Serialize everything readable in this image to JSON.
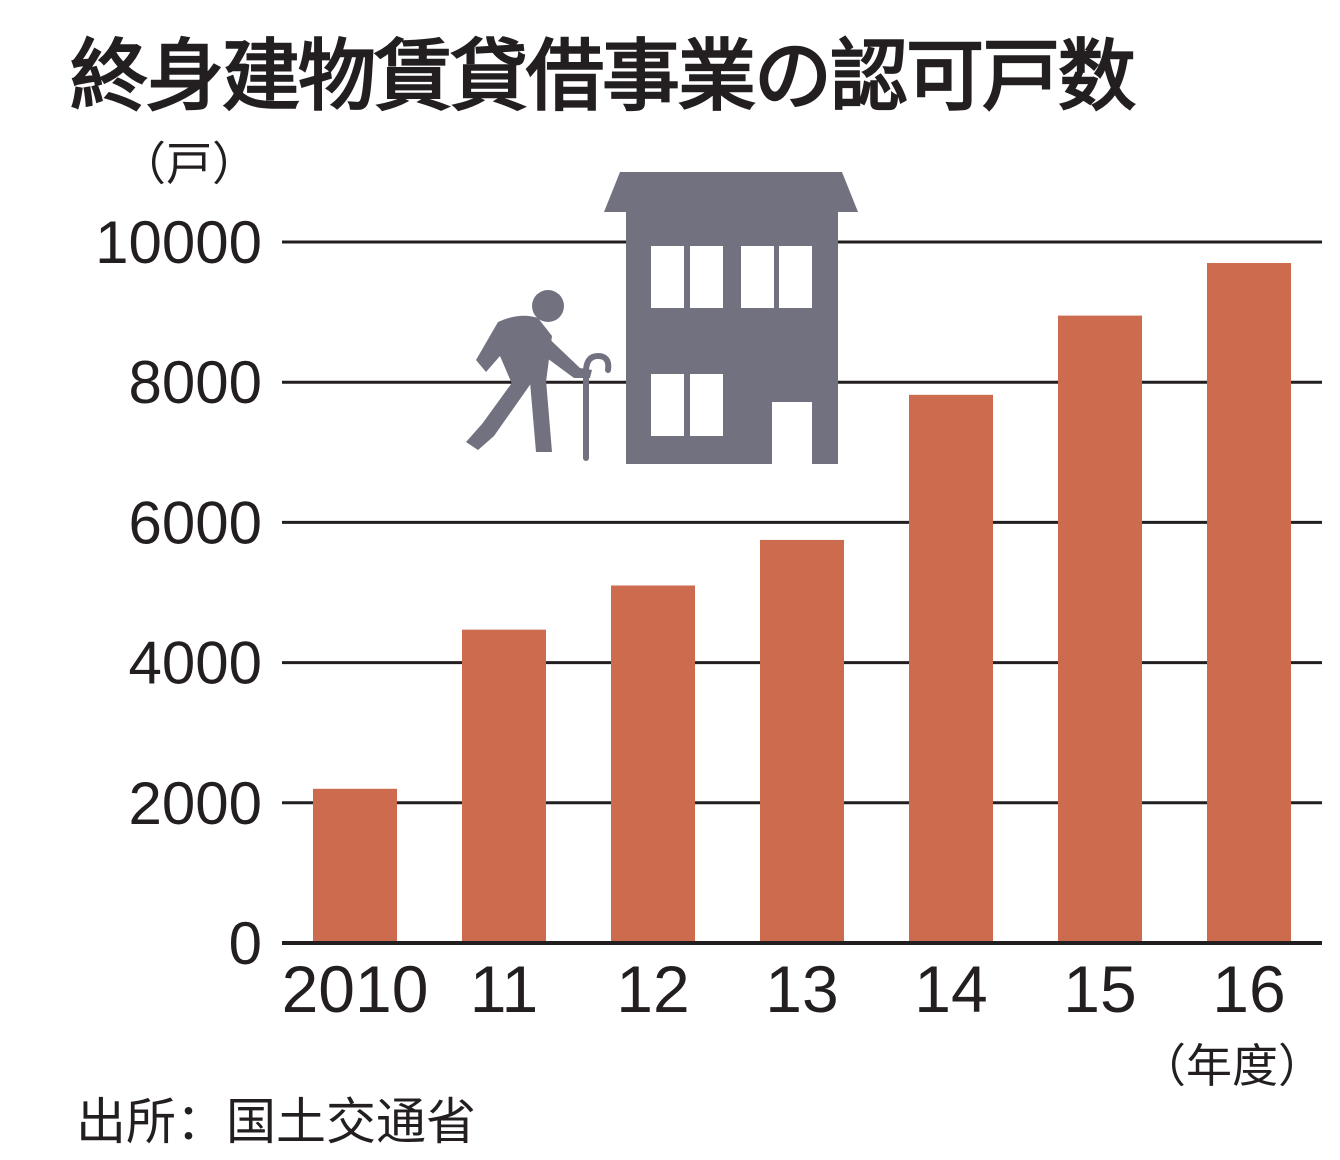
{
  "chart_data": {
    "type": "bar",
    "title": "終身建物賃貸借事業の認可戸数",
    "ylabel": "（戸）",
    "xlabel": "（年度）",
    "categories": [
      "2010",
      "11",
      "12",
      "13",
      "14",
      "15",
      "16"
    ],
    "values": [
      2200,
      4470,
      5100,
      5750,
      7820,
      8950,
      9700
    ],
    "ylim": [
      0,
      10000
    ],
    "yticks": [
      0,
      2000,
      4000,
      6000,
      8000,
      10000
    ],
    "grid": true,
    "legend": "none",
    "bar_color": "#cd6b4e",
    "source": "出所：国土交通省"
  },
  "illustration": {
    "icons": [
      "elderly-person-with-cane-icon",
      "building-icon"
    ],
    "icon_color": "#727180"
  }
}
